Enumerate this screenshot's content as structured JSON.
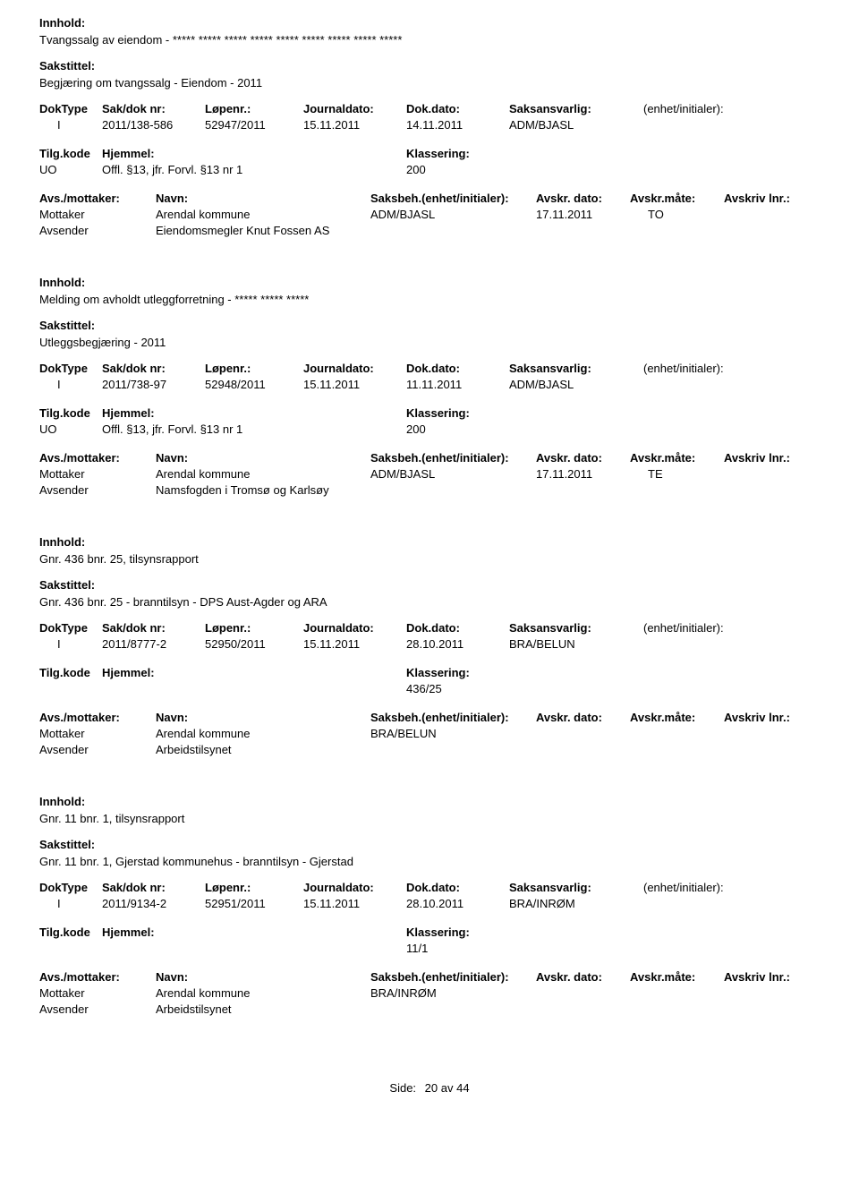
{
  "labels": {
    "innhold": "Innhold:",
    "sakstittel": "Sakstittel:",
    "doktype": "DokType",
    "sakdok": "Sak/dok nr:",
    "lopenr": "Løpenr.:",
    "journaldato": "Journaldato:",
    "dokdato": "Dok.dato:",
    "saksansvarlig": "Saksansvarlig:",
    "enhet": "(enhet/initialer):",
    "tilgkode": "Tilg.kode",
    "hjemmel": "Hjemmel:",
    "klassering": "Klassering:",
    "avsmottaker": "Avs./mottaker:",
    "navn": "Navn:",
    "saksbeh_enhet": "Saksbeh.(enhet/initialer):",
    "avskr_dato": "Avskr. dato:",
    "avskr_mate": "Avskr.måte:",
    "avskriv_lnr": "Avskriv lnr.:",
    "mottaker": "Mottaker",
    "avsender": "Avsender",
    "side": "Side:",
    "av": "av"
  },
  "records": [
    {
      "innhold": "Tvangssalg av eiendom - ***** ***** ***** ***** ***** ***** ***** ***** *****",
      "sakstittel": "Begjæring om tvangssalg - Eiendom - 2011",
      "doktype": "I",
      "sakdok": "2011/138-586",
      "lopenr": "52947/2011",
      "journaldato": "15.11.2011",
      "dokdato": "14.11.2011",
      "saksansvarlig": "ADM/BJASL",
      "tilgkode": "UO",
      "hjemmel": "Offl. §13, jfr. Forvl. §13 nr 1",
      "klassering": "200",
      "mottaker_navn": "Arendal kommune",
      "mottaker_saksbeh": "ADM/BJASL",
      "mottaker_avskrdato": "17.11.2011",
      "mottaker_avskrmate": "TO",
      "avsender_navn": "Eiendomsmegler Knut Fossen AS"
    },
    {
      "innhold": "Melding om avholdt utleggforretning - ***** ***** *****",
      "sakstittel": "Utleggsbegjæring - 2011",
      "doktype": "I",
      "sakdok": "2011/738-97",
      "lopenr": "52948/2011",
      "journaldato": "15.11.2011",
      "dokdato": "11.11.2011",
      "saksansvarlig": "ADM/BJASL",
      "tilgkode": "UO",
      "hjemmel": "Offl. §13, jfr. Forvl. §13 nr 1",
      "klassering": "200",
      "mottaker_navn": "Arendal kommune",
      "mottaker_saksbeh": "ADM/BJASL",
      "mottaker_avskrdato": "17.11.2011",
      "mottaker_avskrmate": "TE",
      "avsender_navn": "Namsfogden i Tromsø og Karlsøy"
    },
    {
      "innhold": "Gnr. 436 bnr. 25, tilsynsrapport",
      "sakstittel": "Gnr. 436 bnr. 25 - branntilsyn - DPS Aust-Agder og ARA",
      "doktype": "I",
      "sakdok": "2011/8777-2",
      "lopenr": "52950/2011",
      "journaldato": "15.11.2011",
      "dokdato": "28.10.2011",
      "saksansvarlig": "BRA/BELUN",
      "tilgkode": "",
      "hjemmel": "",
      "klassering": "436/25",
      "mottaker_navn": "Arendal kommune",
      "mottaker_saksbeh": "BRA/BELUN",
      "mottaker_avskrdato": "",
      "mottaker_avskrmate": "",
      "avsender_navn": "Arbeidstilsynet"
    },
    {
      "innhold": "Gnr. 11 bnr. 1, tilsynsrapport",
      "sakstittel": "Gnr. 11  bnr. 1, Gjerstad kommunehus - branntilsyn - Gjerstad",
      "doktype": "I",
      "sakdok": "2011/9134-2",
      "lopenr": "52951/2011",
      "journaldato": "15.11.2011",
      "dokdato": "28.10.2011",
      "saksansvarlig": "BRA/INRØM",
      "tilgkode": "",
      "hjemmel": "",
      "klassering": "11/1",
      "mottaker_navn": "Arendal kommune",
      "mottaker_saksbeh": "BRA/INRØM",
      "mottaker_avskrdato": "",
      "mottaker_avskrmate": "",
      "avsender_navn": "Arbeidstilsynet"
    }
  ],
  "footer": {
    "page_current": "20",
    "page_total": "44"
  }
}
